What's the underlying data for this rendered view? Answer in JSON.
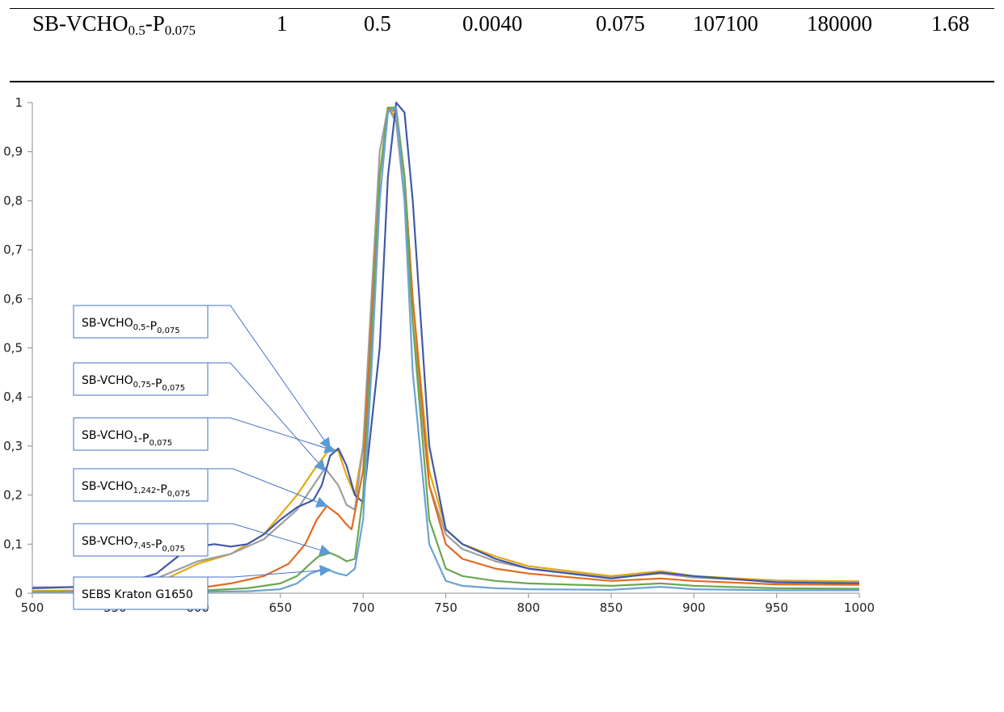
{
  "table": {
    "row": {
      "name_base": "SB-VCHO",
      "name_sub1": "0.5",
      "name_mid": "-P",
      "name_sub2": "0.075",
      "values": [
        "1",
        "0.5",
        "0.0040",
        "0.075",
        "107100",
        "180000",
        "1.68"
      ]
    }
  },
  "chart_data": {
    "type": "line",
    "title": "",
    "xlabel": "",
    "ylabel": "",
    "xlim": [
      500,
      1000
    ],
    "ylim": [
      0,
      1
    ],
    "x_ticks": [
      "500",
      "550",
      "600",
      "650",
      "700",
      "750",
      "800",
      "850",
      "900",
      "950",
      "1000"
    ],
    "y_ticks": [
      "0",
      "0,1",
      "0,2",
      "0,3",
      "0,4",
      "0,5",
      "0,6",
      "0,7",
      "0,8",
      "0,9",
      "1"
    ],
    "grid": false,
    "series": [
      {
        "label_base": "SB-VCHO",
        "label_sub1": "0,5",
        "label_mid": "-P",
        "label_sub2": "0,075",
        "color": "#E6A80F",
        "x": [
          500,
          550,
          575,
          600,
          620,
          640,
          660,
          670,
          680,
          685,
          690,
          695,
          700,
          705,
          710,
          715,
          720,
          725,
          730,
          740,
          750,
          760,
          780,
          800,
          850,
          880,
          900,
          950,
          1000
        ],
        "y": [
          0.005,
          0.006,
          0.02,
          0.06,
          0.08,
          0.12,
          0.2,
          0.25,
          0.295,
          0.29,
          0.24,
          0.2,
          0.3,
          0.55,
          0.85,
          0.99,
          0.97,
          0.85,
          0.6,
          0.25,
          0.13,
          0.1,
          0.075,
          0.055,
          0.035,
          0.045,
          0.035,
          0.026,
          0.024
        ],
        "arrow_target": [
          680,
          0.295
        ]
      },
      {
        "label_base": "SB-VCHO",
        "label_sub1": "0,75",
        "label_mid": "-P",
        "label_sub2": "0,075",
        "color": "#9E9E9E",
        "x": [
          500,
          550,
          575,
          600,
          620,
          640,
          660,
          670,
          677,
          685,
          690,
          695,
          700,
          705,
          710,
          715,
          720,
          725,
          730,
          740,
          750,
          760,
          780,
          800,
          850,
          880,
          900,
          950,
          1000
        ],
        "y": [
          0.012,
          0.013,
          0.03,
          0.065,
          0.08,
          0.11,
          0.17,
          0.22,
          0.255,
          0.22,
          0.18,
          0.17,
          0.3,
          0.6,
          0.9,
          0.99,
          0.96,
          0.8,
          0.55,
          0.22,
          0.12,
          0.09,
          0.065,
          0.05,
          0.032,
          0.04,
          0.032,
          0.024,
          0.022
        ],
        "arrow_target": [
          677,
          0.25
        ]
      },
      {
        "label_base": "SB-VCHO",
        "label_sub1": "1",
        "label_mid": "-P",
        "label_sub2": "0,075",
        "color": "#4059A8",
        "x": [
          500,
          550,
          575,
          590,
          600,
          610,
          620,
          630,
          640,
          650,
          660,
          670,
          675,
          680,
          685,
          690,
          695,
          700,
          710,
          715,
          720,
          725,
          730,
          740,
          750,
          760,
          780,
          800,
          850,
          880,
          900,
          950,
          1000
        ],
        "y": [
          0.01,
          0.015,
          0.04,
          0.08,
          0.095,
          0.1,
          0.095,
          0.1,
          0.12,
          0.15,
          0.175,
          0.19,
          0.22,
          0.28,
          0.295,
          0.26,
          0.2,
          0.185,
          0.5,
          0.85,
          1.0,
          0.98,
          0.8,
          0.3,
          0.13,
          0.1,
          0.07,
          0.05,
          0.03,
          0.042,
          0.035,
          0.022,
          0.02
        ],
        "arrow_target": [
          683,
          0.29
        ]
      },
      {
        "label_base": "SB-VCHO",
        "label_sub1": "1,242",
        "label_mid": "-P",
        "label_sub2": "0,075",
        "color": "#E06B22",
        "x": [
          500,
          550,
          600,
          620,
          640,
          655,
          665,
          672,
          678,
          685,
          690,
          693,
          700,
          705,
          710,
          715,
          720,
          725,
          730,
          740,
          750,
          760,
          780,
          800,
          850,
          880,
          900,
          950,
          1000
        ],
        "y": [
          0.003,
          0.004,
          0.01,
          0.02,
          0.035,
          0.06,
          0.1,
          0.15,
          0.178,
          0.16,
          0.14,
          0.13,
          0.25,
          0.55,
          0.85,
          0.99,
          0.98,
          0.85,
          0.6,
          0.22,
          0.1,
          0.07,
          0.05,
          0.04,
          0.025,
          0.03,
          0.025,
          0.018,
          0.017
        ],
        "arrow_target": [
          678,
          0.178
        ]
      },
      {
        "label_base": "SB-VCHO",
        "label_sub1": "7,45",
        "label_mid": "-P",
        "label_sub2": "0,075",
        "color": "#6AA84F",
        "x": [
          500,
          550,
          600,
          630,
          650,
          660,
          668,
          673,
          680,
          685,
          690,
          695,
          700,
          705,
          710,
          715,
          720,
          725,
          730,
          740,
          750,
          760,
          780,
          800,
          850,
          880,
          900,
          950,
          1000
        ],
        "y": [
          0.003,
          0.003,
          0.005,
          0.01,
          0.02,
          0.035,
          0.06,
          0.075,
          0.082,
          0.075,
          0.065,
          0.07,
          0.2,
          0.5,
          0.85,
          0.99,
          0.99,
          0.85,
          0.55,
          0.15,
          0.05,
          0.035,
          0.025,
          0.02,
          0.015,
          0.02,
          0.015,
          0.01,
          0.009
        ],
        "arrow_target": [
          680,
          0.082
        ]
      },
      {
        "label_base": "SEBS Kraton G1650",
        "label_sub1": "",
        "label_mid": "",
        "label_sub2": "",
        "color": "#6BA3D6",
        "x": [
          500,
          550,
          600,
          630,
          650,
          660,
          668,
          675,
          680,
          685,
          690,
          695,
          700,
          705,
          710,
          715,
          720,
          725,
          730,
          740,
          750,
          760,
          780,
          800,
          850,
          880,
          900,
          950,
          1000
        ],
        "y": [
          0.003,
          0.003,
          0.003,
          0.004,
          0.008,
          0.02,
          0.04,
          0.048,
          0.046,
          0.04,
          0.036,
          0.05,
          0.15,
          0.45,
          0.8,
          0.98,
          0.99,
          0.8,
          0.45,
          0.1,
          0.025,
          0.015,
          0.01,
          0.008,
          0.007,
          0.013,
          0.008,
          0.006,
          0.006
        ],
        "arrow_target": [
          680,
          0.048
        ]
      }
    ]
  }
}
